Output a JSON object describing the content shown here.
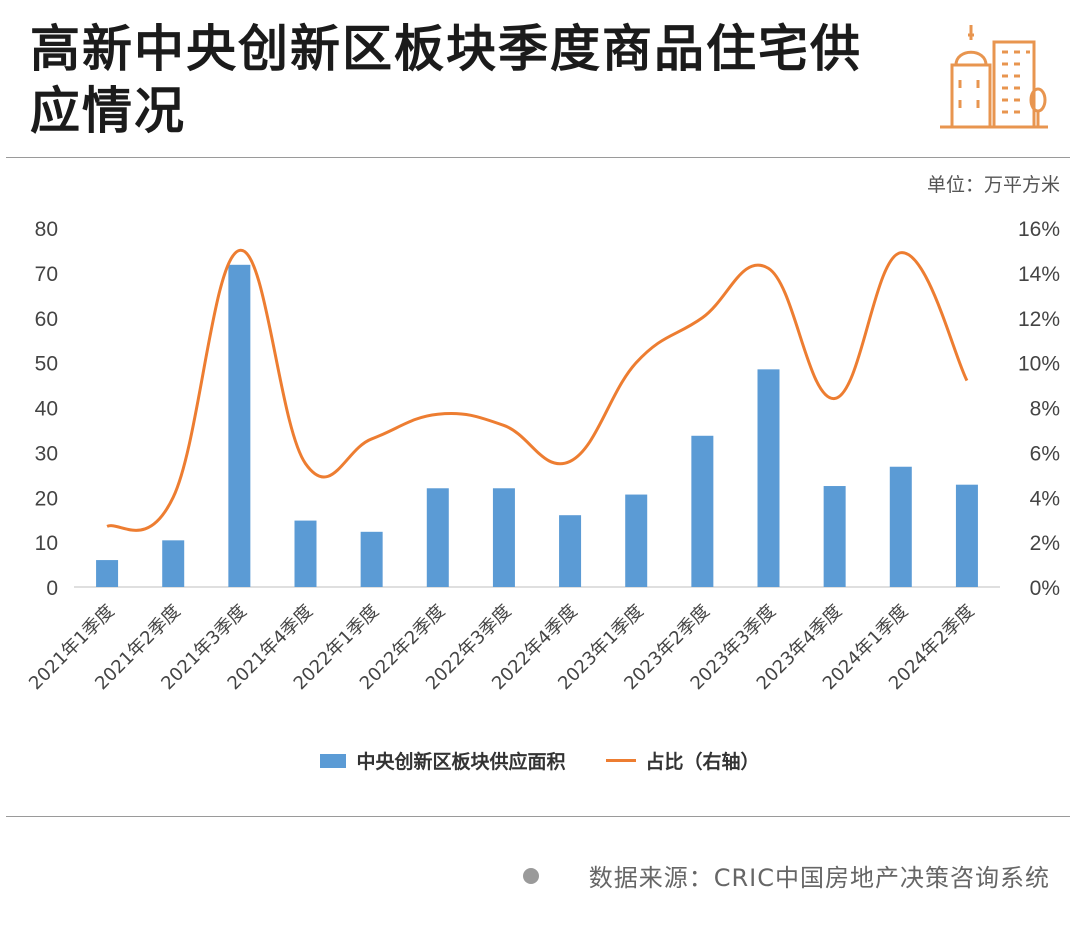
{
  "title": "高新中央创新区板块季度商品住宅供应情况",
  "unit_label": "单位：万平方米",
  "source_label": "数据来源：CRIC中国房地产决策咨询系统",
  "colors": {
    "bar": "#5b9bd5",
    "line": "#ed7d31",
    "accent": "#e8954f",
    "grid": "#d9d9d9"
  },
  "chart_data": {
    "type": "bar",
    "categories": [
      "2021年1季度",
      "2021年2季度",
      "2021年3季度",
      "2021年4季度",
      "2022年1季度",
      "2022年2季度",
      "2022年3季度",
      "2022年4季度",
      "2023年1季度",
      "2023年2季度",
      "2023年3季度",
      "2023年4季度",
      "2024年1季度",
      "2024年2季度"
    ],
    "series": [
      {
        "name": "中央创新区板块供应面积",
        "type": "bar",
        "axis": "left",
        "values": [
          6,
          10.4,
          71.8,
          14.8,
          12.3,
          22,
          22,
          16,
          20.6,
          33.7,
          48.5,
          22.5,
          26.8,
          22.8
        ]
      },
      {
        "name": "占比（右轴）",
        "type": "line",
        "axis": "right",
        "smooth": true,
        "values": [
          2.7,
          4.0,
          15.0,
          5.5,
          6.6,
          7.7,
          7.2,
          5.6,
          10.0,
          12.0,
          14.2,
          8.4,
          14.9,
          9.2
        ]
      }
    ],
    "yleft": {
      "min": 0,
      "max": 80,
      "ticks": [
        "0",
        "10",
        "20",
        "30",
        "40",
        "50",
        "60",
        "70",
        "80"
      ]
    },
    "yright": {
      "min": 0,
      "max": 16,
      "ticks": [
        "0%",
        "2%",
        "4%",
        "6%",
        "8%",
        "10%",
        "12%",
        "14%",
        "16%"
      ]
    },
    "grid": false,
    "legend": "bottom"
  }
}
